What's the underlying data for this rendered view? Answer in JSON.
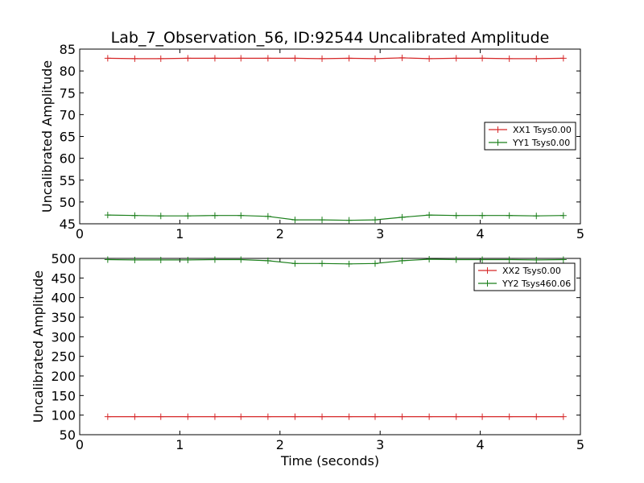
{
  "figure": {
    "title": "Lab_7_Observation_56, ID:92544 Uncalibrated Amplitude"
  },
  "colors": {
    "XX": "#d62728",
    "YY": "#1b7f1b",
    "axes": "#000000",
    "background": "#ffffff"
  },
  "chart_data": [
    {
      "type": "line",
      "title": "Lab_7_Observation_56, ID:92544 Uncalibrated Amplitude",
      "xlabel": "",
      "ylabel": "Uncalibrated Amplitude",
      "xlim": [
        0,
        5
      ],
      "ylim": [
        45,
        85
      ],
      "xticks": [
        "0",
        "1",
        "2",
        "3",
        "4",
        "5"
      ],
      "yticks": [
        "45",
        "50",
        "55",
        "60",
        "65",
        "70",
        "75",
        "80",
        "85"
      ],
      "grid": false,
      "legend_position": "right",
      "x": [
        0.28,
        0.55,
        0.81,
        1.08,
        1.35,
        1.61,
        1.88,
        2.15,
        2.42,
        2.69,
        2.95,
        3.22,
        3.49,
        3.76,
        4.02,
        4.29,
        4.56,
        4.83
      ],
      "series": [
        {
          "name": "XX1 Tsys0.00",
          "color_key": "XX",
          "marker": "plus",
          "values": [
            82.9,
            82.8,
            82.8,
            82.9,
            82.9,
            82.9,
            82.9,
            82.9,
            82.8,
            82.9,
            82.8,
            83.0,
            82.8,
            82.9,
            82.9,
            82.8,
            82.8,
            82.9
          ]
        },
        {
          "name": "YY1 Tsys0.00",
          "color_key": "YY",
          "marker": "plus",
          "values": [
            47.0,
            46.9,
            46.8,
            46.8,
            46.9,
            46.9,
            46.7,
            45.9,
            45.9,
            45.8,
            45.9,
            46.5,
            47.0,
            46.9,
            46.9,
            46.9,
            46.8,
            46.9
          ]
        }
      ]
    },
    {
      "type": "line",
      "title": "",
      "xlabel": "Time (seconds)",
      "ylabel": "Uncalibrated Amplitude",
      "xlim": [
        0,
        5
      ],
      "ylim": [
        50,
        500
      ],
      "xticks": [
        "0",
        "1",
        "2",
        "3",
        "4",
        "5"
      ],
      "yticks": [
        "50",
        "100",
        "150",
        "200",
        "250",
        "300",
        "350",
        "400",
        "450",
        "500"
      ],
      "grid": false,
      "legend_position": "top-right",
      "x": [
        0.28,
        0.55,
        0.81,
        1.08,
        1.35,
        1.61,
        1.88,
        2.15,
        2.42,
        2.69,
        2.95,
        3.22,
        3.49,
        3.76,
        4.02,
        4.29,
        4.56,
        4.83
      ],
      "series": [
        {
          "name": "XX2 Tsys0.00",
          "color_key": "XX",
          "marker": "plus",
          "values": [
            96,
            96,
            96,
            96,
            96,
            96,
            96,
            96,
            96,
            96,
            96,
            96,
            96,
            96,
            96,
            96,
            96,
            96
          ]
        },
        {
          "name": "YY2 Tsys460.06",
          "color_key": "YY",
          "marker": "plus",
          "values": [
            497,
            496,
            496,
            496,
            497,
            497,
            494,
            487,
            487,
            486,
            487,
            494,
            498,
            497,
            497,
            497,
            496,
            497
          ]
        }
      ]
    }
  ]
}
